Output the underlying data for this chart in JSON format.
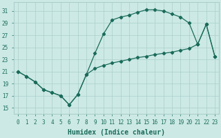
{
  "background_color": "#cce9e5",
  "grid_color": "#aacfcb",
  "line_color": "#1a6b5a",
  "xlabel": "Humidex (Indice chaleur)",
  "xlabel_fontsize": 7,
  "xlim": [
    -0.5,
    23.5
  ],
  "ylim": [
    14.0,
    32.5
  ],
  "xticks": [
    0,
    1,
    2,
    3,
    4,
    5,
    6,
    7,
    8,
    9,
    10,
    11,
    12,
    13,
    14,
    15,
    16,
    17,
    18,
    19,
    20,
    21,
    22,
    23
  ],
  "yticks": [
    15,
    17,
    19,
    21,
    23,
    25,
    27,
    29,
    31
  ],
  "tick_fontsize": 5.5,
  "curve1_x": [
    0,
    1,
    2,
    3,
    4,
    5,
    6,
    7,
    8,
    9,
    10,
    11,
    12,
    13,
    14,
    15,
    16,
    17,
    18,
    19,
    20,
    21
  ],
  "curve1_y": [
    21,
    20.2,
    19.3,
    18.0,
    17.5,
    17.0,
    15.5,
    17.2,
    20.5,
    24.0,
    27.2,
    29.5,
    30.0,
    30.3,
    30.8,
    31.2,
    31.2,
    31.0,
    30.5,
    30.0,
    29.0,
    25.5
  ],
  "curve2_x": [
    0,
    1,
    2,
    3,
    4,
    5,
    6,
    7,
    8,
    9,
    10,
    11,
    12,
    13,
    14,
    15,
    16,
    17,
    18,
    19,
    20,
    21,
    22,
    23
  ],
  "curve2_y": [
    21,
    20.2,
    19.3,
    18.0,
    17.5,
    17.0,
    15.5,
    17.2,
    20.5,
    21.5,
    22.0,
    22.4,
    22.7,
    23.0,
    23.3,
    23.5,
    23.8,
    24.0,
    24.2,
    24.5,
    24.8,
    25.5,
    28.8,
    23.5
  ],
  "curve3_x": [
    21,
    22,
    23
  ],
  "curve3_y": [
    25.5,
    28.8,
    23.5
  ]
}
